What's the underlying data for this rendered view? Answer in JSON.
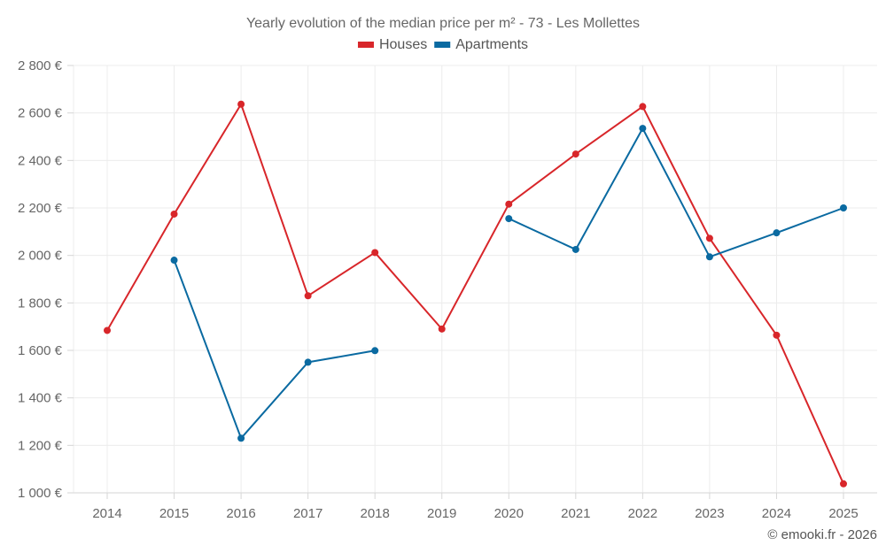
{
  "chart_data": {
    "type": "line",
    "title": "Yearly evolution of the median price per m² - 73 - Les Mollettes",
    "xlabel": "",
    "ylabel": "",
    "categories": [
      "2014",
      "2015",
      "2016",
      "2017",
      "2018",
      "2019",
      "2020",
      "2021",
      "2022",
      "2023",
      "2024",
      "2025"
    ],
    "ylim": [
      1000,
      2800
    ],
    "yticks": [
      1000,
      1200,
      1400,
      1600,
      1800,
      2000,
      2200,
      2400,
      2600,
      2800
    ],
    "ytick_labels": [
      "1 000 €",
      "1 200 €",
      "1 400 €",
      "1 600 €",
      "1 800 €",
      "2 000 €",
      "2 200 €",
      "2 400 €",
      "2 600 €",
      "2 800 €"
    ],
    "grid": true,
    "legend_position": "top-center",
    "series": [
      {
        "name": "Houses",
        "color": "#d8262a",
        "values": [
          1684,
          2174,
          2637,
          1830,
          2012,
          1690,
          2216,
          2427,
          2627,
          2072,
          1664,
          1038
        ]
      },
      {
        "name": "Apartments",
        "color": "#0a6aa1",
        "values": [
          null,
          1980,
          1230,
          1550,
          1599,
          null,
          2155,
          2025,
          2535,
          1994,
          2095,
          2200
        ]
      }
    ],
    "credit": "© emooki.fr - 2026"
  }
}
